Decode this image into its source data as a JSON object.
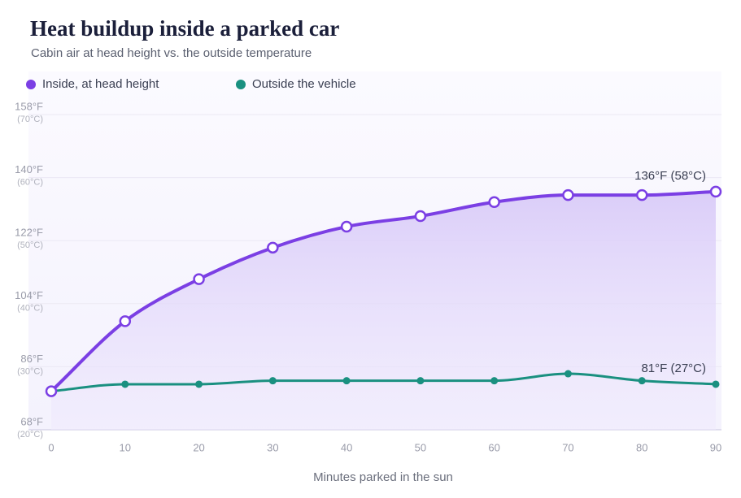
{
  "chart_data": {
    "type": "line",
    "title": "Heat buildup inside a parked car",
    "subtitle": "Cabin air at head height vs. the outside temperature",
    "x_label": "Minutes parked in the sun",
    "x": [
      0,
      10,
      20,
      30,
      40,
      50,
      60,
      70,
      80,
      90
    ],
    "xlim": [
      0,
      90
    ],
    "xticks": [
      0,
      10,
      20,
      30,
      40,
      50,
      60,
      70,
      80,
      90
    ],
    "ylim": [
      68,
      158
    ],
    "yticks": [
      {
        "value": 68,
        "label": "68°F"
      },
      {
        "value": 86,
        "label": "86°F"
      },
      {
        "value": 104,
        "label": "104°F"
      },
      {
        "value": 122,
        "label": "122°F"
      },
      {
        "value": 140,
        "label": "140°F"
      },
      {
        "value": 158,
        "label": "158°F"
      }
    ],
    "ytick_sublabels": [
      "(20°C)",
      "(30°C)",
      "(40°C)",
      "(50°C)",
      "(60°C)",
      "(70°C)"
    ],
    "grid": true,
    "legend_position": "top-left",
    "series": [
      {
        "name": "Inside, at head height",
        "color": "#7b3fe4",
        "fill_area": true,
        "marker": "open",
        "values": [
          79,
          99,
          111,
          120,
          126,
          129,
          133,
          135,
          135,
          136
        ]
      },
      {
        "name": "Outside the vehicle",
        "color": "#1a9080",
        "fill_area": false,
        "marker": "dot",
        "values": [
          79,
          81,
          81,
          82,
          82,
          82,
          82,
          84,
          82,
          81
        ]
      }
    ],
    "annotations": [
      {
        "text": "136°F (58°C)",
        "series": 0,
        "point": 9
      },
      {
        "text": "81°F (27°C)",
        "series": 1,
        "point": 9
      }
    ]
  }
}
